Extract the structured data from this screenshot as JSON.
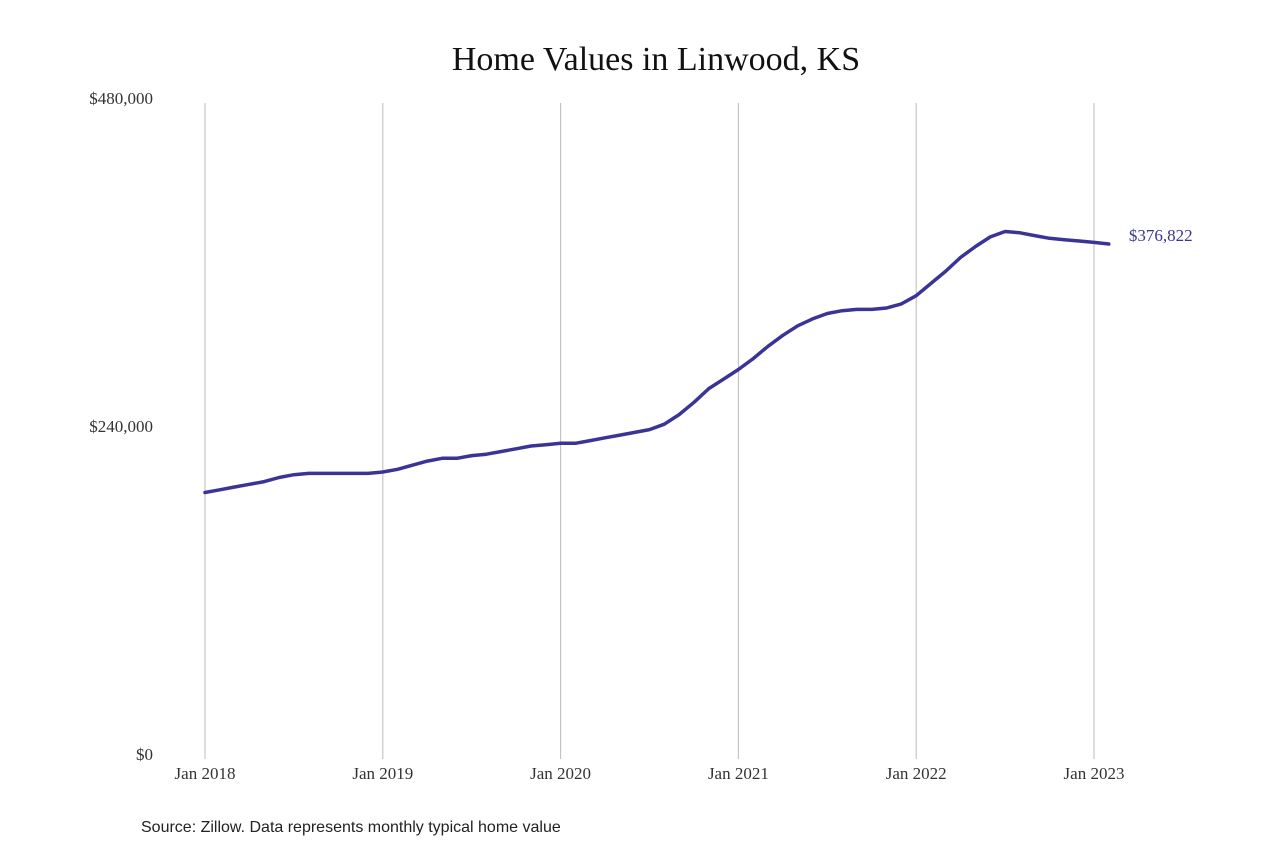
{
  "chart_data": {
    "type": "line",
    "title": "Home Values in Linwood, KS",
    "source": "Source: Zillow. Data represents monthly typical home value",
    "categories": [
      "Jan 2018",
      null,
      null,
      null,
      null,
      null,
      null,
      null,
      null,
      null,
      null,
      null,
      "Jan 2019",
      null,
      null,
      null,
      null,
      null,
      null,
      null,
      null,
      null,
      null,
      null,
      "Jan 2020",
      null,
      null,
      null,
      null,
      null,
      null,
      null,
      null,
      null,
      null,
      null,
      "Jan 2021",
      null,
      null,
      null,
      null,
      null,
      null,
      null,
      null,
      null,
      null,
      null,
      "Jan 2022",
      null,
      null,
      null,
      null,
      null,
      null,
      null,
      null,
      null,
      null,
      null,
      "Jan 2023",
      null
    ],
    "values": [
      195000,
      197000,
      199000,
      201000,
      203000,
      206000,
      208000,
      209000,
      209000,
      209000,
      209000,
      209000,
      210000,
      212000,
      215000,
      218000,
      220000,
      220000,
      222000,
      223000,
      225000,
      227000,
      229000,
      230000,
      231000,
      231000,
      233000,
      235000,
      237000,
      239000,
      241000,
      245000,
      252000,
      261000,
      271000,
      278000,
      285000,
      293000,
      302000,
      310000,
      317000,
      322000,
      326000,
      328000,
      329000,
      329000,
      330000,
      333000,
      339000,
      348000,
      357000,
      367000,
      375000,
      382000,
      386000,
      385000,
      383000,
      381000,
      380000,
      379000,
      378000,
      376822
    ],
    "last_value_label": "$376,822",
    "color": "#3b3497",
    "ylim": [
      0,
      480000
    ],
    "yticks": [
      {
        "value": 0,
        "label": "$0"
      },
      {
        "value": 240000,
        "label": "$240,000"
      },
      {
        "value": 480000,
        "label": "$480,000"
      }
    ],
    "x_grid": true
  }
}
